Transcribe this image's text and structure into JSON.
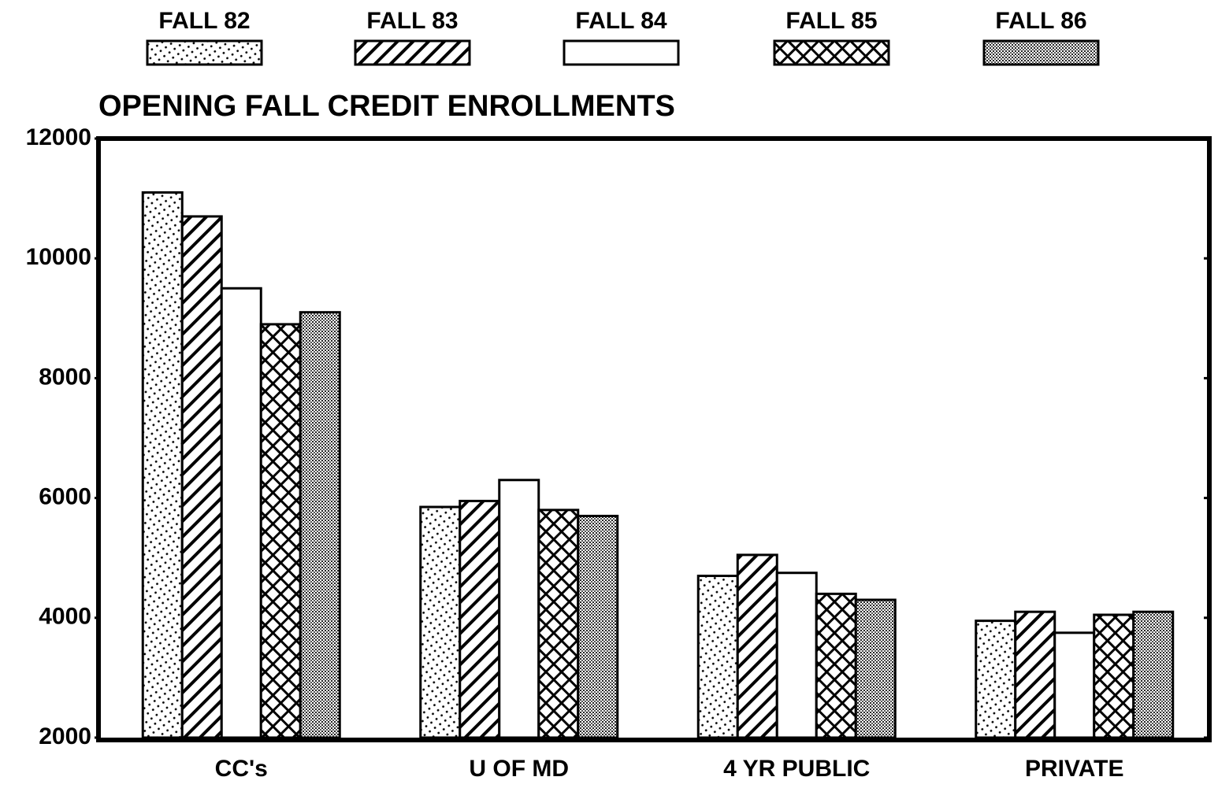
{
  "chart_data": {
    "type": "bar",
    "title": "OPENING FALL CREDIT ENROLLMENTS",
    "categories": [
      "CC's",
      "U OF MD",
      "4 YR PUBLIC",
      "PRIVATE"
    ],
    "series": [
      {
        "name": "FALL 82",
        "color": "#000000",
        "pattern": "dots",
        "values": [
          11100,
          5850,
          4700,
          3950
        ]
      },
      {
        "name": "FALL 83",
        "color": "#000000",
        "pattern": "diagonal",
        "values": [
          10700,
          5950,
          5050,
          4100
        ]
      },
      {
        "name": "FALL 84",
        "color": "#000000",
        "pattern": "none",
        "values": [
          9500,
          6300,
          4750,
          3750
        ]
      },
      {
        "name": "FALL 85",
        "color": "#000000",
        "pattern": "crosshatch",
        "values": [
          8900,
          5800,
          4400,
          4050
        ]
      },
      {
        "name": "FALL 86",
        "color": "#000000",
        "pattern": "fine-dots",
        "values": [
          9100,
          5700,
          4300,
          4100
        ]
      }
    ],
    "ylim": [
      2000,
      12000
    ],
    "yticks": [
      2000,
      4000,
      6000,
      8000,
      10000,
      12000
    ],
    "legend": "top"
  }
}
